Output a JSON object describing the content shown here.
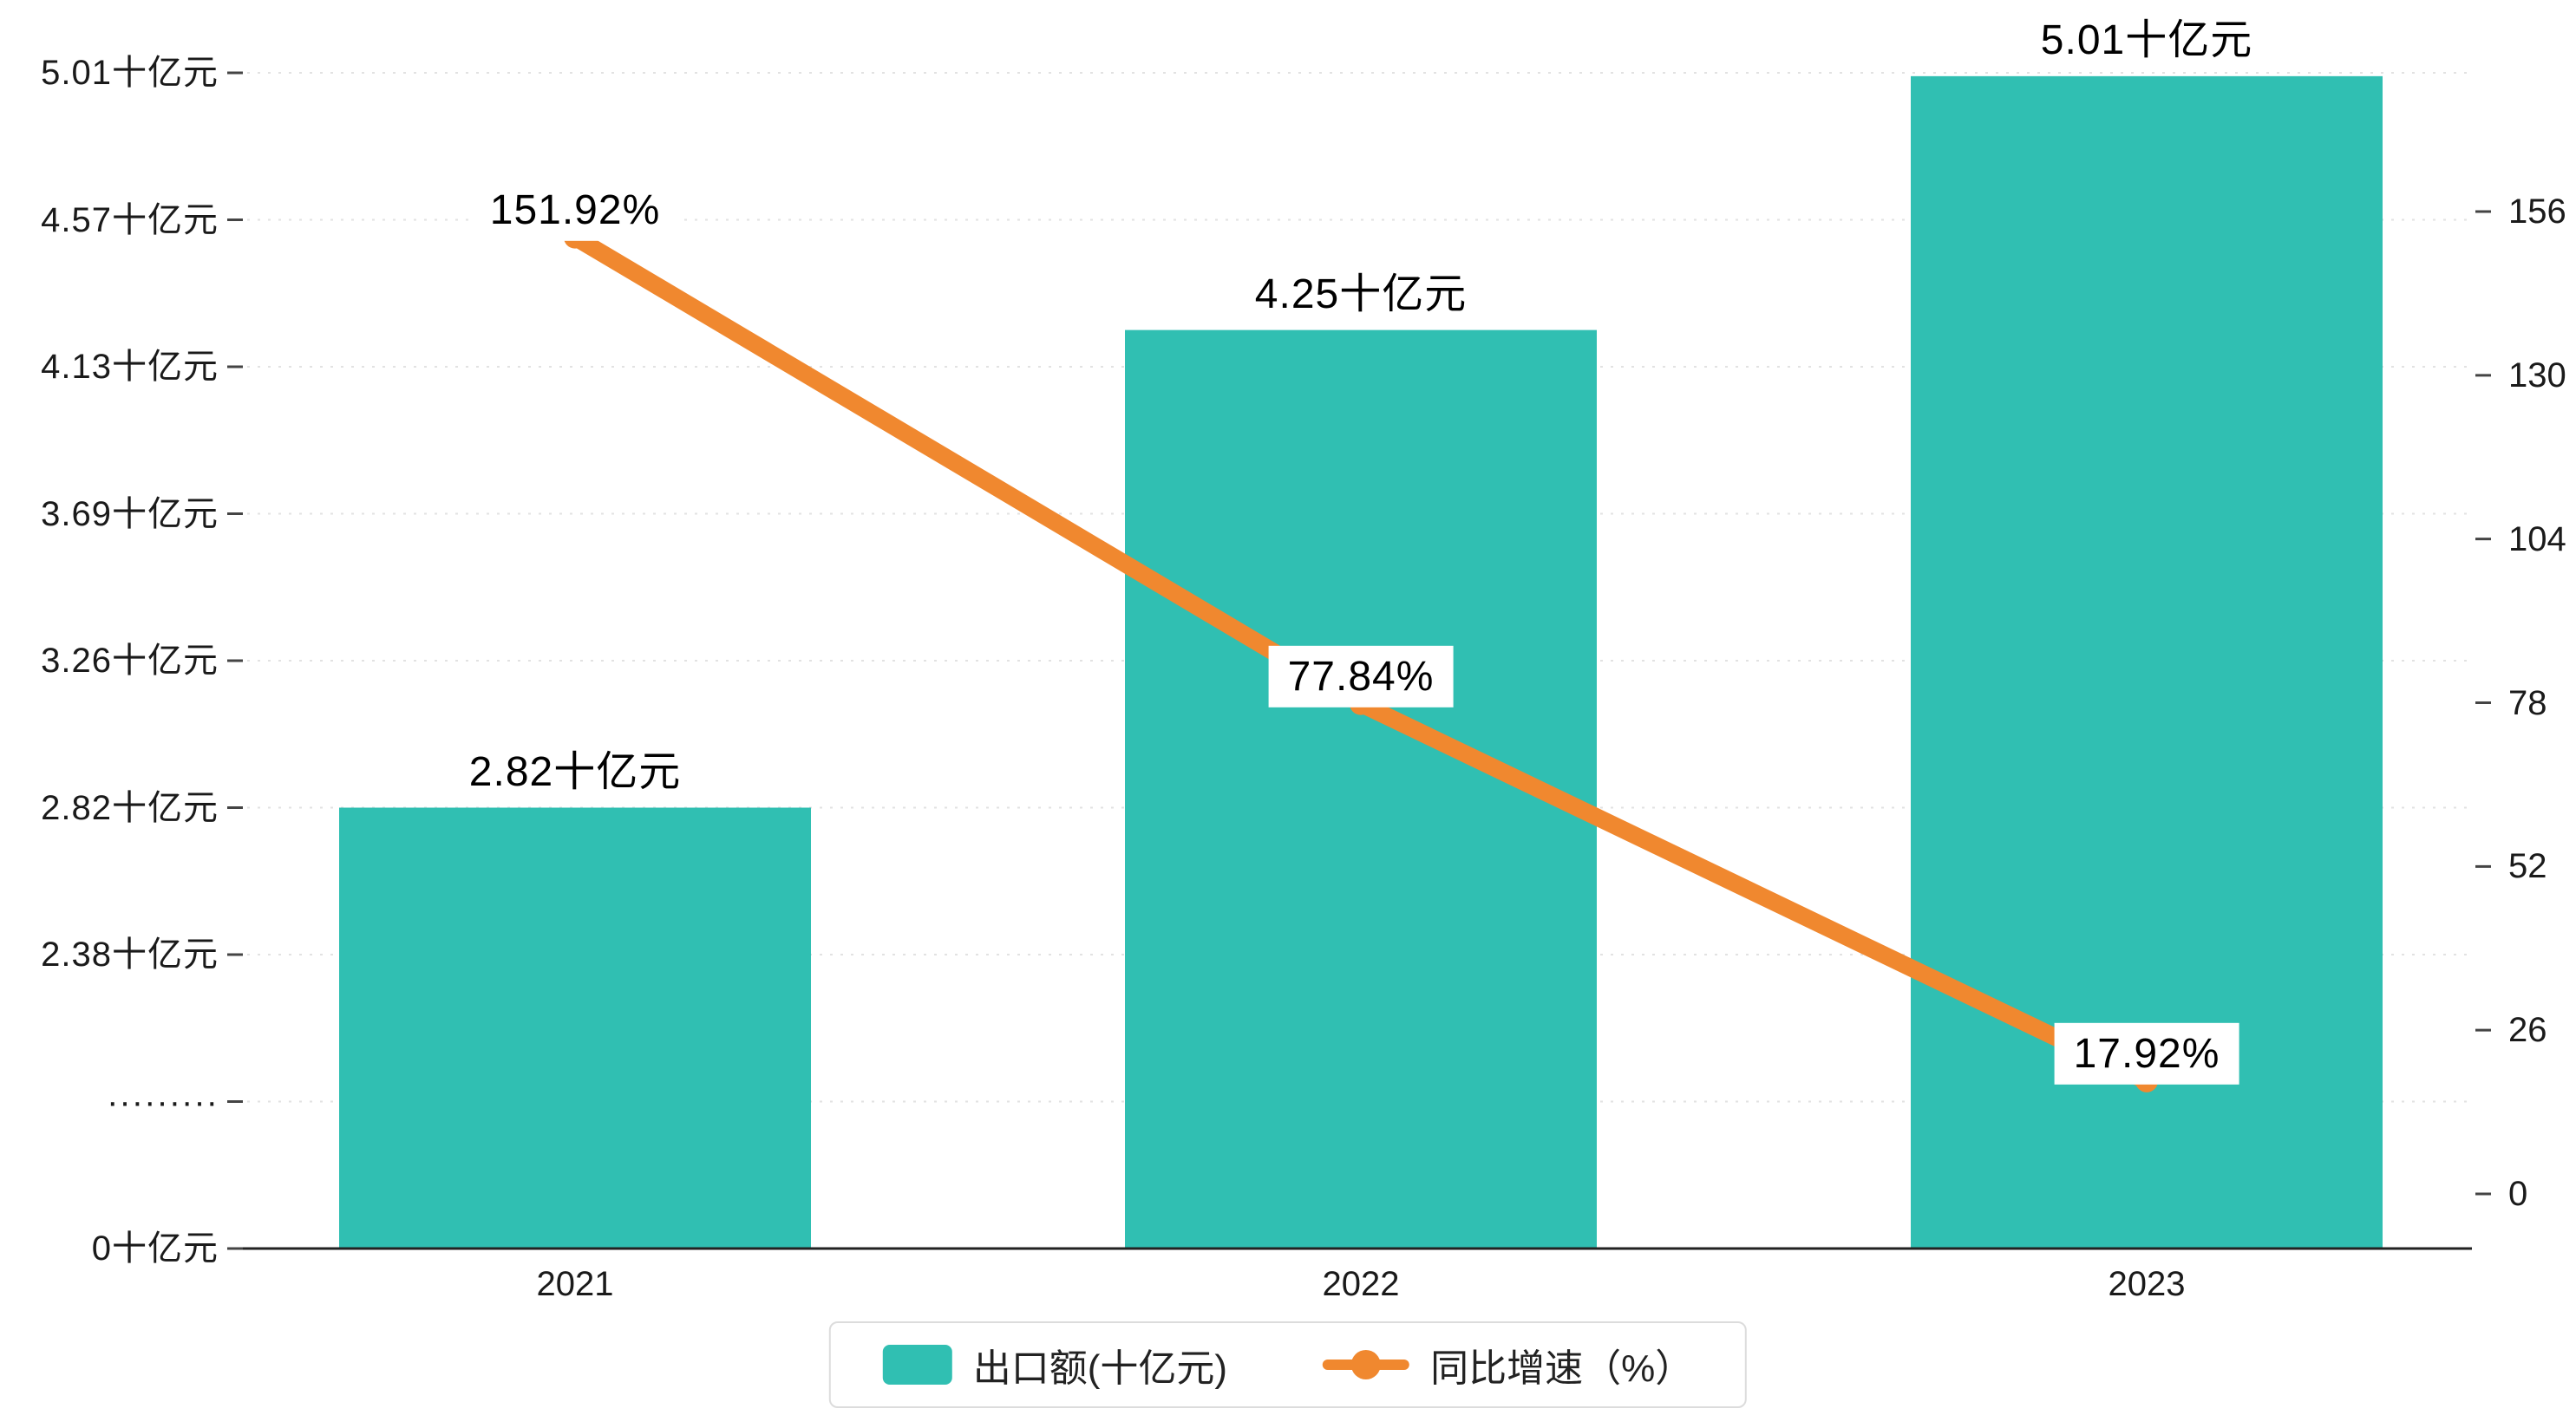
{
  "chart_data": {
    "type": "bar+line",
    "categories": [
      "2021",
      "2022",
      "2023"
    ],
    "series": [
      {
        "name": "出口额(十亿元)",
        "type": "bar",
        "axis": "left",
        "values": [
          2.82,
          4.25,
          5.01
        ],
        "value_labels": [
          "2.82十亿元",
          "4.25十亿元",
          "5.01十亿元"
        ],
        "color": "#30bfb2"
      },
      {
        "name": "同比增速（%）",
        "type": "line",
        "axis": "right",
        "values": [
          151.92,
          77.84,
          17.92
        ],
        "value_labels": [
          "151.92%",
          "77.84%",
          "17.92%"
        ],
        "color": "#f0882f"
      }
    ],
    "left_axis": {
      "tick_labels": [
        "0十亿元",
        "·········",
        "2.38十亿元",
        "2.82十亿元",
        "3.26十亿元",
        "3.69十亿元",
        "4.13十亿元",
        "4.57十亿元",
        "5.01十亿元"
      ],
      "tick_values": [
        0,
        null,
        2.38,
        2.82,
        3.26,
        3.69,
        4.13,
        4.57,
        5.01
      ],
      "broken_axis": true
    },
    "right_axis": {
      "tick_labels": [
        "0",
        "26",
        "52",
        "78",
        "104",
        "130",
        "156"
      ],
      "tick_values": [
        0,
        26,
        52,
        78,
        104,
        130,
        156
      ]
    },
    "legend": {
      "items": [
        {
          "label": "出口额(十亿元)",
          "color": "#30bfb2",
          "marker": "bar"
        },
        {
          "label": "同比增速（%）",
          "color": "#f0882f",
          "marker": "line"
        }
      ],
      "position": "bottom-center"
    },
    "grid": true,
    "colors": {
      "bar": "#30bfb2",
      "line": "#f0882f",
      "gridline": "#e2e2e2",
      "axis": "#222222"
    }
  }
}
